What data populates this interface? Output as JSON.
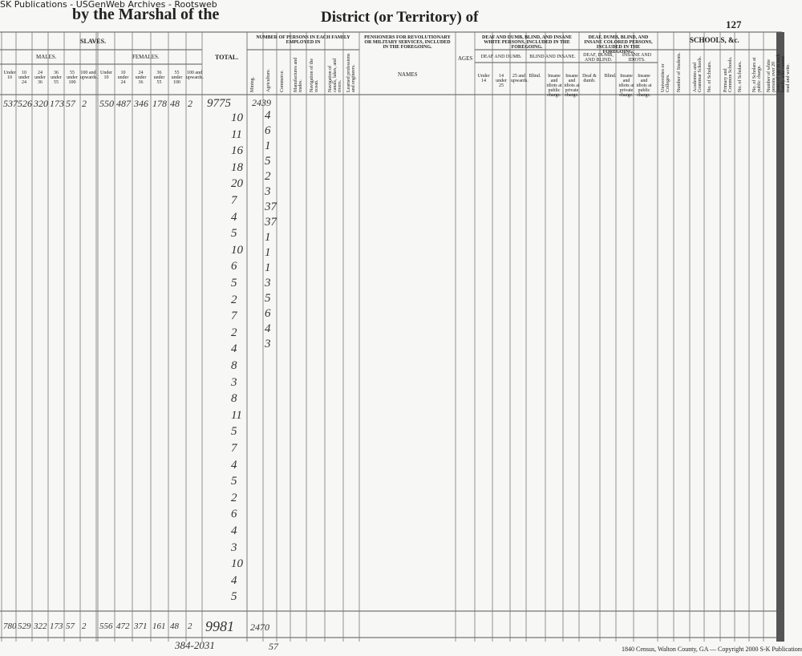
{
  "header": {
    "source": "SK Publications - USGenWeb Archives - Rootsweb",
    "title_left": "by the Marshal of the",
    "title_right": "District (or Territory) of",
    "page_number": "127"
  },
  "columns": {
    "slaves": "SLAVES.",
    "males": "MALES.",
    "females": "FEMALES.",
    "total": "TOTAL.",
    "age_groups": [
      "Under 10",
      "10 under 24",
      "24 under 36",
      "36 under 55",
      "55 under 100",
      "100 and upwards."
    ],
    "employed": "NUMBER OF PERSONS IN EACH FAMILY EMPLOYED IN",
    "employed_cols": [
      "Mining.",
      "Agriculture.",
      "Commerce.",
      "Manufactures and trades.",
      "Navigation of the ocean.",
      "Navigation of canals, lakes, and rivers.",
      "Learned professions and engineers."
    ],
    "pensioners": "PENSIONERS FOR REVOLUTIONARY OR MILITARY SERVICES, INCLUDED IN THE FOREGOING.",
    "names": "NAMES",
    "ages": "AGES",
    "white_disabled": "DEAF AND DUMB, BLIND, AND INSANE WHITE PERSONS, INCLUDED IN THE FOREGOING.",
    "white_sub": [
      "DEAF AND DUMB.",
      "BLIND AND INSANE."
    ],
    "white_cols": [
      "Under 14",
      "14 under 25",
      "25 and upwards.",
      "Blind.",
      "Insane and idiots at public charge.",
      "Insane and idiots at private charge."
    ],
    "colored_disabled": "DEAF, DUMB, BLIND, AND INSANE COLORED PERSONS, INCLUDED IN THE FOREGOING.",
    "colored_sub": [
      "DEAF, DUMB, AND BLIND.",
      "INSANE AND IDIOTS."
    ],
    "colored_cols": [
      "Deaf & dumb.",
      "Blind.",
      "Insane and idiots at private charge.",
      "Insane and idiots at public charge."
    ],
    "schools": "SCHOOLS, &c.",
    "school_cols": [
      "Universities or Colleges.",
      "Number of Students.",
      "Academies and Grammar Schools.",
      "No. of Scholars.",
      "Primary and Common Schools.",
      "No. of Scholars.",
      "No. of Scholars at public charge.",
      "Number of white persons over 20 years of age in each family who cannot read and write."
    ]
  },
  "first_row": {
    "males": [
      "537",
      "526",
      "320",
      "173",
      "57",
      "2"
    ],
    "females": [
      "550",
      "487",
      "346",
      "178",
      "48",
      "2"
    ],
    "total": "9775",
    "agriculture": "2439"
  },
  "totals_column": [
    "10",
    "11",
    "16",
    "18",
    "20",
    "7",
    "4",
    "5",
    "10",
    "6",
    "5",
    "2",
    "7",
    "2",
    "4",
    "8",
    "3",
    "8",
    "11",
    "5",
    "7",
    "4",
    "5",
    "2",
    "6",
    "4",
    "3",
    "10",
    "4",
    "5"
  ],
  "agriculture_column": [
    "4",
    "6",
    "1",
    "5",
    "2",
    "3",
    "37",
    "37",
    "1",
    "1",
    "1",
    "3",
    "5",
    "6",
    "4",
    "3"
  ],
  "bottom_totals": {
    "males": [
      "780",
      "529",
      "322",
      "173",
      "57",
      "2"
    ],
    "females": [
      "556",
      "472",
      "371",
      "161",
      "48",
      "2"
    ],
    "total": "9981",
    "agriculture": "2470"
  },
  "bottom_notes": [
    "384-2031",
    "57"
  ],
  "footer": "1840 Census, Walton County, GA — Copyright 2000 S-K Publications"
}
